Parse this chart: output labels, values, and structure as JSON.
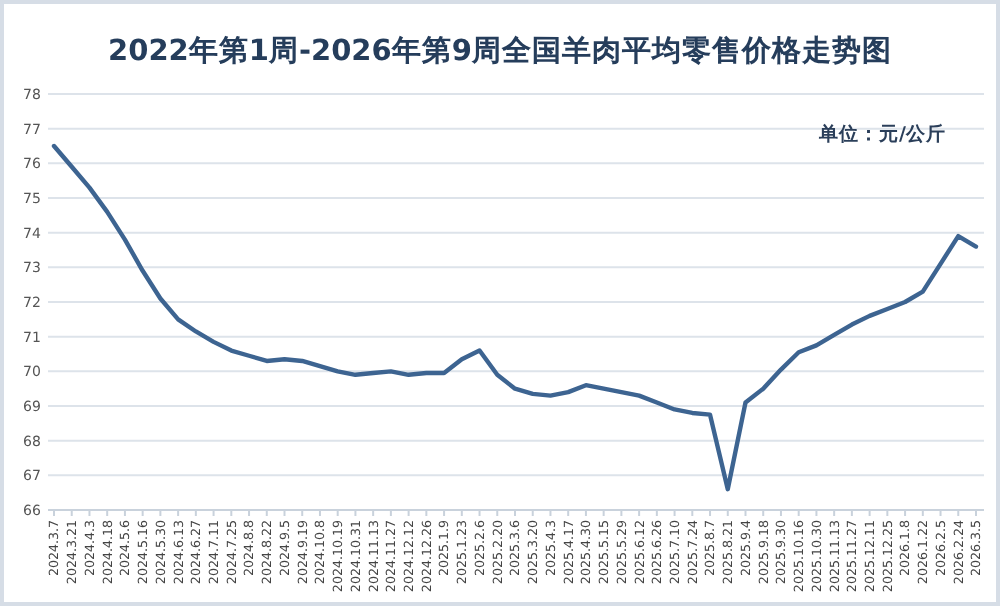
{
  "chart_data": {
    "type": "line",
    "title": "2022年第1周-2026年第9周全国羊肉平均零售价格走势图",
    "annotations": [
      "单位：元/公斤"
    ],
    "categories": [
      "2024.3.7",
      "2024.3.21",
      "2024.4.3",
      "2024.4.18",
      "2024.5.6",
      "2024.5.16",
      "2024.5.30",
      "2024.6.13",
      "2024.6.27",
      "2024.7.11",
      "2024.7.25",
      "2024.8.8",
      "2024.8.22",
      "2024.9.5",
      "2024.9.19",
      "2024.10.8",
      "2024.10.19",
      "2024.10.31",
      "2024.11.13",
      "2024.11.27",
      "2024.12.12",
      "2024.12.26",
      "2025.1.9",
      "2025.1.23",
      "2025.2.6",
      "2025.2.20",
      "2025.3.6",
      "2025.3.20",
      "2025.4.3",
      "2025.4.17",
      "2025.4.30",
      "2025.5.15",
      "2025.5.29",
      "2025.6.12",
      "2025.6.26",
      "2025.7.10",
      "2025.7.24",
      "2025.8.7",
      "2025.8.21",
      "2025.9.4",
      "2025.9.18",
      "2025.9.30",
      "2025.10.16",
      "2025.10.30",
      "2025.11.13",
      "2025.11.27",
      "2025.12.11",
      "2025.12.25",
      "2026.1.8",
      "2026.1.22",
      "2026.2.5",
      "2026.2.24",
      "2026.3.5"
    ],
    "series": [
      {
        "color": "#3d6491",
        "values": [
          76.5,
          75.9,
          75.3,
          74.6,
          73.8,
          72.9,
          72.1,
          71.5,
          71.15,
          70.85,
          70.6,
          70.45,
          70.3,
          70.35,
          70.3,
          70.15,
          70.0,
          69.9,
          69.95,
          70.0,
          69.9,
          69.95,
          69.95,
          70.35,
          70.6,
          69.9,
          69.5,
          69.35,
          69.3,
          69.4,
          69.6,
          69.5,
          69.4,
          69.3,
          69.1,
          68.9,
          68.8,
          68.75,
          66.6,
          69.1,
          69.5,
          70.05,
          70.55,
          70.75,
          71.05,
          71.35,
          71.6,
          71.8,
          72.0,
          72.3,
          73.1,
          73.9,
          73.6
        ]
      }
    ],
    "ylim": [
      66,
      78
    ],
    "yticks": [
      66,
      67,
      68,
      69,
      70,
      71,
      72,
      73,
      74,
      75,
      76,
      77,
      78
    ],
    "grid": "y",
    "marker": "none",
    "line_style": "solid"
  }
}
